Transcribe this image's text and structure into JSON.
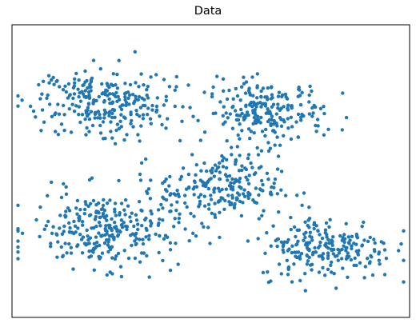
{
  "chart_data": {
    "type": "scatter",
    "title": "Data",
    "xlabel": "",
    "ylabel": "",
    "axes_ticks_visible": false,
    "grid": false,
    "legend": "none",
    "xlim": [
      -5.0,
      5.0
    ],
    "ylim": [
      -5.0,
      5.0
    ],
    "series": [
      {
        "color": "#1f77b4",
        "marker": "dot",
        "clusters": [
          {
            "center": [
              -2.6,
              2.4
            ],
            "spread": [
              0.85,
              0.55
            ],
            "count": 260
          },
          {
            "center": [
              1.35,
              2.0
            ],
            "spread": [
              0.75,
              0.55
            ],
            "count": 230
          },
          {
            "center": [
              -2.6,
              -2.0
            ],
            "spread": [
              0.95,
              0.65
            ],
            "count": 290
          },
          {
            "center": [
              0.2,
              -0.6
            ],
            "spread": [
              0.75,
              0.55
            ],
            "count": 210
          },
          {
            "center": [
              2.9,
              -2.6
            ],
            "spread": [
              0.85,
              0.55
            ],
            "count": 230
          }
        ]
      }
    ]
  }
}
